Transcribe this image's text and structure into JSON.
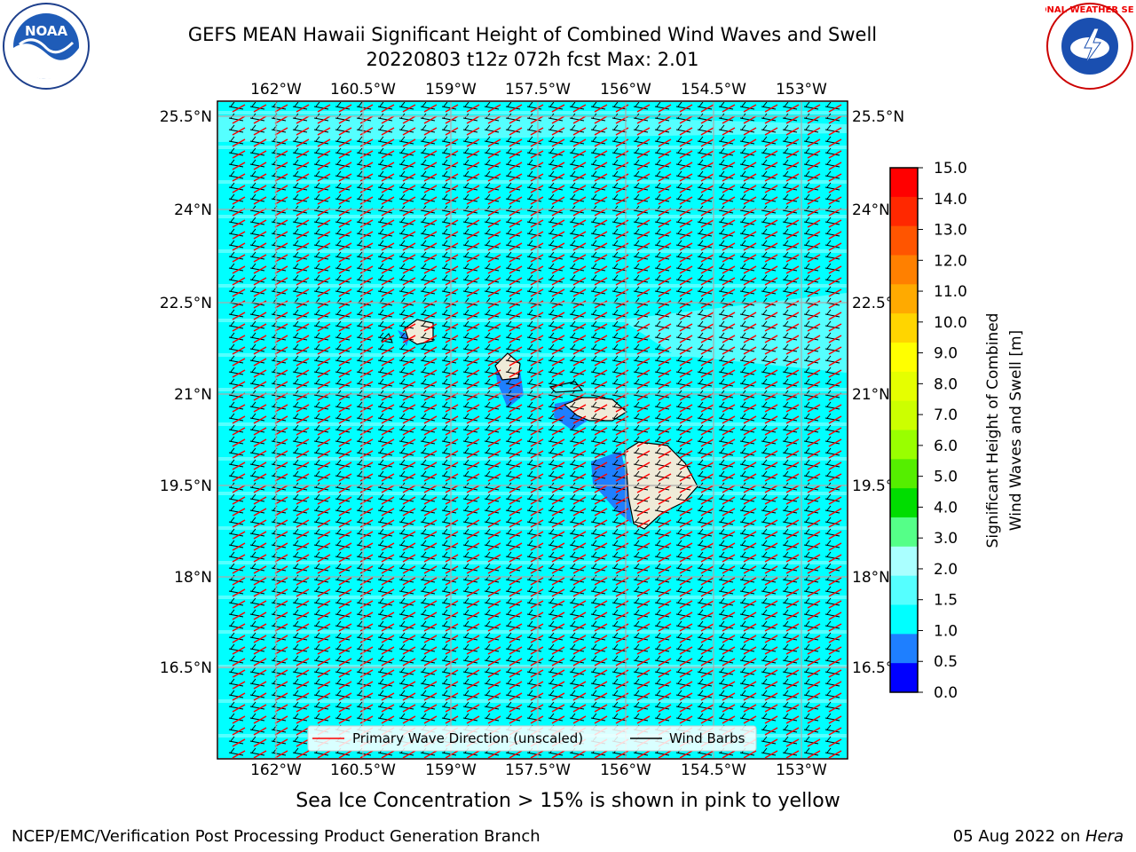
{
  "title_line1": "GEFS MEAN Hawaii Significant Height of Combined Wind Waves and Swell",
  "title_line2": "20220803 t12z 072h fcst   Max: 2.01",
  "lon_labels": [
    "162°W",
    "160.5°W",
    "159°W",
    "157.5°W",
    "156°W",
    "154.5°W",
    "153°W"
  ],
  "lat_labels": [
    "25.5°N",
    "24°N",
    "22.5°N",
    "21°N",
    "19.5°N",
    "18°N",
    "16.5°N"
  ],
  "legend": {
    "wave_label": "Primary Wave Direction (unscaled)",
    "barb_label": "Wind Barbs"
  },
  "colorbar": {
    "label_line1": "Significant Height of Combined",
    "label_line2": "Wind Waves and Swell [m]",
    "ticks": [
      "15.0",
      "14.0",
      "13.0",
      "12.0",
      "11.0",
      "10.0",
      "9.0",
      "8.0",
      "7.0",
      "6.0",
      "5.0",
      "4.0",
      "3.0",
      "2.0",
      "1.5",
      "1.0",
      "0.5",
      "0.0"
    ],
    "colors": [
      "#ff0000",
      "#ff2800",
      "#ff5500",
      "#ff8000",
      "#ffaa00",
      "#ffd500",
      "#ffff00",
      "#e5ff00",
      "#ccff00",
      "#99ff00",
      "#55ee00",
      "#00dd00",
      "#55ff88",
      "#aaffff",
      "#55ffff",
      "#00ffff",
      "#1e7fff",
      "#0000ff"
    ]
  },
  "ice_note": "Sea Ice Concentration > 15% is shown in pink to yellow",
  "footer_left": "NCEP/EMC/Verification Post Processing Product Generation Branch",
  "footer_right_date": "05 Aug 2022 on ",
  "footer_right_host": "Hera",
  "logos": {
    "noaa": "NOAA",
    "nws": "NATIONAL WEATHER SERVICE"
  }
}
